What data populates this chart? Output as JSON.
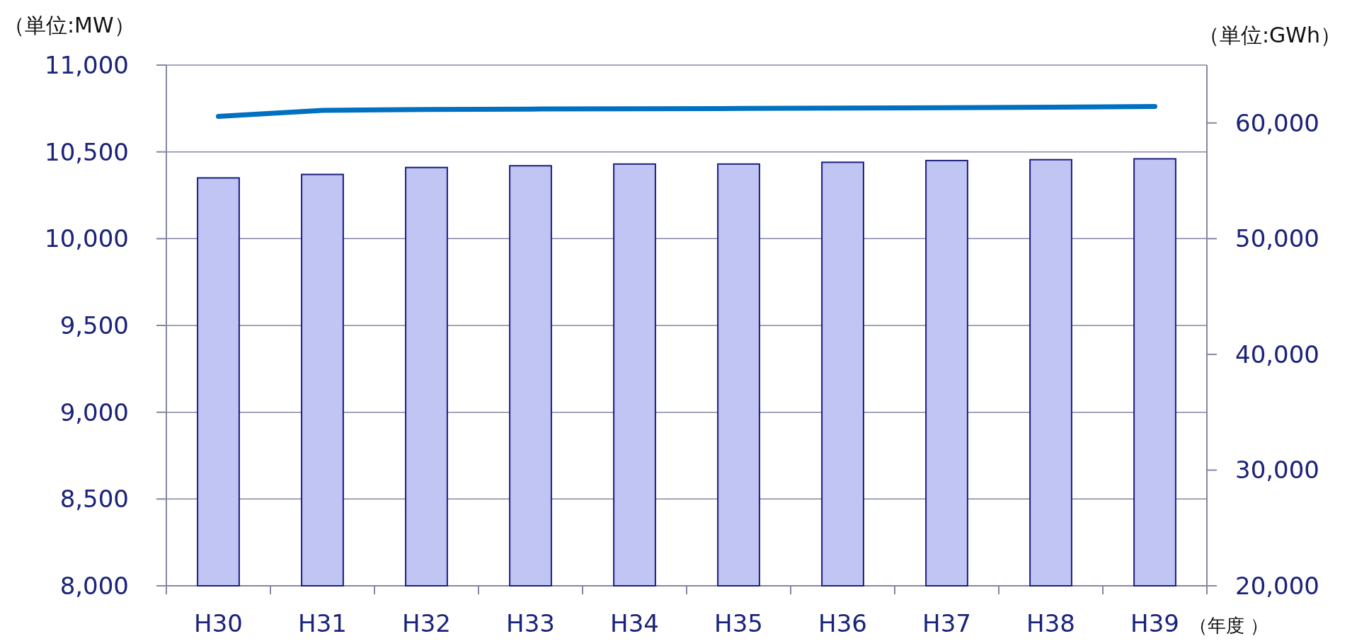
{
  "chart_data": {
    "type": "bar",
    "xlabel": "（年度 ）",
    "ylabel": "（単位:MW）",
    "y2label": "（単位:GWh）",
    "categories": [
      "H30",
      "H31",
      "H32",
      "H33",
      "H34",
      "H35",
      "H36",
      "H37",
      "H38",
      "H39"
    ],
    "series": [
      {
        "color": "#c0c5f3",
        "values": [
          10350,
          10370,
          10410,
          10420,
          10430,
          10430,
          10440,
          10450,
          10455,
          10460
        ]
      },
      {
        "type": "line",
        "axis": "y2",
        "color": "#0070c0",
        "values": [
          60570,
          61090,
          61170,
          61200,
          61220,
          61250,
          61280,
          61320,
          61360,
          61420
        ]
      }
    ],
    "ylim": [
      8000,
      11000
    ],
    "yticks": [
      {
        "value": 8000,
        "label": "8,000"
      },
      {
        "value": 8500,
        "label": "8,500"
      },
      {
        "value": 9000,
        "label": "9,000"
      },
      {
        "value": 9500,
        "label": "9,500"
      },
      {
        "value": 10000,
        "label": "10,000"
      },
      {
        "value": 10500,
        "label": "10,500"
      },
      {
        "value": 11000,
        "label": "11,000"
      }
    ],
    "y2lim": [
      20000,
      65000
    ],
    "y2ticks": [
      {
        "value": 20000,
        "label": "20,000"
      },
      {
        "value": 30000,
        "label": "30,000"
      },
      {
        "value": 40000,
        "label": "40,000"
      },
      {
        "value": 50000,
        "label": "50,000"
      },
      {
        "value": 60000,
        "label": "60,000"
      }
    ],
    "grid": "y"
  }
}
